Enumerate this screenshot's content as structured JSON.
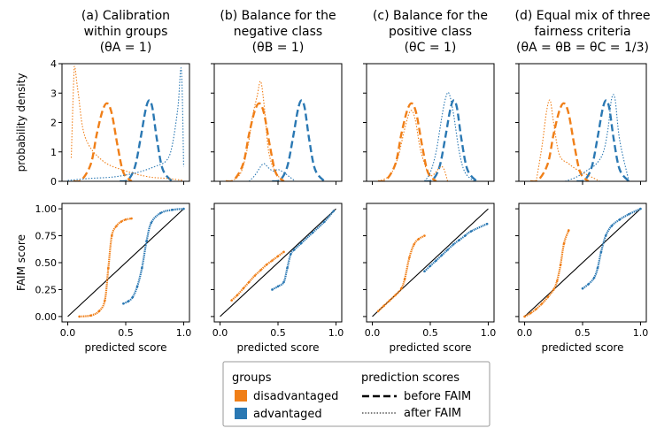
{
  "colors": {
    "disadvantaged": "#f07f18",
    "advantaged": "#2a78b3",
    "identity": "#000000"
  },
  "legend": {
    "groups_title": "groups",
    "groups": [
      {
        "label": "disadvantaged",
        "color": "#f07f18"
      },
      {
        "label": "advantaged",
        "color": "#2a78b3"
      }
    ],
    "scores_title": "prediction scores",
    "scores": [
      {
        "label": "before FAIM",
        "style": "dashed"
      },
      {
        "label": "after FAIM",
        "style": "dotted"
      }
    ]
  },
  "chart_data": {
    "type": "line",
    "grid": false,
    "legend_placement": "bottom-center",
    "panels": [
      {
        "title_lines": [
          "(a) Calibration",
          "within groups"
        ],
        "theta_label": "(θA = 1)",
        "density": {
          "before": {
            "disadvantaged": {
              "x": [
                0.05,
                0.12,
                0.2,
                0.25,
                0.3,
                0.34,
                0.38,
                0.43,
                0.48,
                0.55
              ],
              "y": [
                0.0,
                0.05,
                0.6,
                1.6,
                2.4,
                2.65,
                2.3,
                1.2,
                0.3,
                0.0
              ]
            },
            "advantaged": {
              "x": [
                0.45,
                0.52,
                0.58,
                0.63,
                0.67,
                0.7,
                0.73,
                0.77,
                0.82,
                0.9
              ],
              "y": [
                0.0,
                0.05,
                0.5,
                1.5,
                2.4,
                2.75,
                2.5,
                1.4,
                0.4,
                0.0
              ]
            }
          },
          "after": {
            "disadvantaged": {
              "x": [
                0.03,
                0.05,
                0.06,
                0.09,
                0.15,
                0.3,
                0.5,
                0.7,
                0.85,
                1.0
              ],
              "y": [
                0.8,
                3.3,
                3.9,
                3.0,
                1.5,
                0.7,
                0.35,
                0.15,
                0.1,
                0.03
              ]
            },
            "advantaged": {
              "x": [
                0.0,
                0.2,
                0.4,
                0.6,
                0.75,
                0.85,
                0.9,
                0.95,
                0.98,
                1.0
              ],
              "y": [
                0.03,
                0.1,
                0.15,
                0.3,
                0.5,
                0.7,
                1.2,
                2.5,
                3.8,
                0.5
              ]
            }
          }
        },
        "faim": {
          "disadvantaged": {
            "x": [
              0.1,
              0.2,
              0.27,
              0.32,
              0.35,
              0.38,
              0.42,
              0.46,
              0.5,
              0.55
            ],
            "y": [
              0.0,
              0.01,
              0.05,
              0.15,
              0.45,
              0.75,
              0.84,
              0.88,
              0.9,
              0.91
            ]
          },
          "advantaged": {
            "x": [
              0.48,
              0.52,
              0.56,
              0.6,
              0.64,
              0.68,
              0.72,
              0.8,
              0.9,
              1.0
            ],
            "y": [
              0.12,
              0.14,
              0.18,
              0.28,
              0.45,
              0.7,
              0.87,
              0.96,
              0.99,
              1.0
            ]
          }
        }
      },
      {
        "title_lines": [
          "(b) Balance for the",
          "negative class"
        ],
        "theta_label": "(θB = 1)",
        "density": {
          "before": {
            "disadvantaged": {
              "x": [
                0.05,
                0.12,
                0.2,
                0.25,
                0.3,
                0.34,
                0.38,
                0.43,
                0.48,
                0.55
              ],
              "y": [
                0.0,
                0.05,
                0.6,
                1.6,
                2.4,
                2.65,
                2.3,
                1.2,
                0.3,
                0.0
              ]
            },
            "advantaged": {
              "x": [
                0.45,
                0.52,
                0.58,
                0.63,
                0.67,
                0.7,
                0.73,
                0.77,
                0.82,
                0.9
              ],
              "y": [
                0.0,
                0.05,
                0.5,
                1.5,
                2.4,
                2.75,
                2.5,
                1.4,
                0.4,
                0.0
              ]
            }
          },
          "after": {
            "disadvantaged": {
              "x": [
                0.1,
                0.18,
                0.24,
                0.28,
                0.32,
                0.35,
                0.38,
                0.42,
                0.48,
                0.55
              ],
              "y": [
                0.0,
                0.3,
                1.2,
                2.2,
                2.9,
                3.4,
                2.6,
                1.0,
                0.3,
                0.0
              ]
            },
            "advantaged": {
              "x": [
                0.25,
                0.3,
                0.35,
                0.38,
                0.42,
                0.46,
                0.5,
                0.55,
                0.6,
                0.65
              ],
              "y": [
                0.0,
                0.2,
                0.5,
                0.6,
                0.45,
                0.35,
                0.4,
                0.3,
                0.15,
                0.0
              ]
            }
          }
        },
        "faim": {
          "disadvantaged": {
            "x": [
              0.1,
              0.15,
              0.2,
              0.25,
              0.3,
              0.35,
              0.4,
              0.45,
              0.5,
              0.55
            ],
            "y": [
              0.15,
              0.2,
              0.26,
              0.32,
              0.38,
              0.43,
              0.48,
              0.52,
              0.56,
              0.6
            ]
          },
          "advantaged": {
            "x": [
              0.45,
              0.5,
              0.55,
              0.58,
              0.61,
              0.64,
              0.7,
              0.8,
              0.9,
              0.98
            ],
            "y": [
              0.25,
              0.28,
              0.32,
              0.45,
              0.58,
              0.62,
              0.68,
              0.78,
              0.88,
              0.98
            ]
          }
        }
      },
      {
        "title_lines": [
          "(c) Balance for the",
          "positive class"
        ],
        "theta_label": "(θC = 1)",
        "density": {
          "before": {
            "disadvantaged": {
              "x": [
                0.05,
                0.12,
                0.2,
                0.25,
                0.3,
                0.34,
                0.38,
                0.43,
                0.48,
                0.55
              ],
              "y": [
                0.0,
                0.05,
                0.6,
                1.6,
                2.4,
                2.65,
                2.3,
                1.2,
                0.3,
                0.0
              ]
            },
            "advantaged": {
              "x": [
                0.45,
                0.52,
                0.58,
                0.63,
                0.67,
                0.7,
                0.73,
                0.77,
                0.82,
                0.9
              ],
              "y": [
                0.0,
                0.05,
                0.5,
                1.5,
                2.4,
                2.75,
                2.5,
                1.4,
                0.4,
                0.0
              ]
            }
          },
          "after": {
            "disadvantaged": {
              "x": [
                0.05,
                0.15,
                0.22,
                0.28,
                0.33,
                0.37,
                0.42,
                0.5,
                0.6,
                0.65
              ],
              "y": [
                0.0,
                0.2,
                0.8,
                1.8,
                2.4,
                2.1,
                1.0,
                0.2,
                0.5,
                0.0
              ]
            },
            "advantaged": {
              "x": [
                0.45,
                0.5,
                0.55,
                0.6,
                0.63,
                0.66,
                0.7,
                0.75,
                0.8,
                0.88
              ],
              "y": [
                0.0,
                0.3,
                1.0,
                2.2,
                2.8,
                3.0,
                2.3,
                1.0,
                0.3,
                0.0
              ]
            }
          }
        },
        "faim": {
          "disadvantaged": {
            "x": [
              0.05,
              0.1,
              0.15,
              0.2,
              0.25,
              0.28,
              0.32,
              0.36,
              0.4,
              0.45
            ],
            "y": [
              0.05,
              0.1,
              0.15,
              0.2,
              0.26,
              0.35,
              0.55,
              0.67,
              0.72,
              0.75
            ]
          },
          "advantaged": {
            "x": [
              0.45,
              0.5,
              0.55,
              0.6,
              0.65,
              0.7,
              0.75,
              0.8,
              0.85,
              0.99
            ],
            "y": [
              0.42,
              0.47,
              0.52,
              0.57,
              0.62,
              0.67,
              0.71,
              0.75,
              0.79,
              0.86
            ]
          }
        }
      },
      {
        "title_lines": [
          "(d) Equal mix of three",
          "fairness criteria"
        ],
        "theta_label": "(θA = θB = θC = 1/3)",
        "density": {
          "before": {
            "disadvantaged": {
              "x": [
                0.05,
                0.12,
                0.2,
                0.25,
                0.3,
                0.34,
                0.38,
                0.43,
                0.48,
                0.55
              ],
              "y": [
                0.0,
                0.05,
                0.6,
                1.6,
                2.4,
                2.65,
                2.3,
                1.2,
                0.3,
                0.0
              ]
            },
            "advantaged": {
              "x": [
                0.45,
                0.52,
                0.58,
                0.63,
                0.67,
                0.7,
                0.73,
                0.77,
                0.82,
                0.9
              ],
              "y": [
                0.0,
                0.05,
                0.5,
                1.5,
                2.4,
                2.75,
                2.5,
                1.4,
                0.4,
                0.0
              ]
            }
          },
          "after": {
            "disadvantaged": {
              "x": [
                0.1,
                0.15,
                0.19,
                0.22,
                0.25,
                0.3,
                0.38,
                0.45,
                0.55,
                0.65
              ],
              "y": [
                0.0,
                1.2,
                2.4,
                2.75,
                2.0,
                0.9,
                0.6,
                0.4,
                0.2,
                0.0
              ]
            },
            "advantaged": {
              "x": [
                0.35,
                0.45,
                0.55,
                0.62,
                0.68,
                0.72,
                0.75,
                0.78,
                0.82,
                0.9
              ],
              "y": [
                0.0,
                0.15,
                0.4,
                0.6,
                1.0,
                1.8,
                2.8,
                2.8,
                1.4,
                0.0
              ]
            }
          }
        },
        "faim": {
          "disadvantaged": {
            "x": [
              0.0,
              0.05,
              0.1,
              0.15,
              0.2,
              0.25,
              0.28,
              0.31,
              0.34,
              0.38
            ],
            "y": [
              0.0,
              0.03,
              0.07,
              0.12,
              0.18,
              0.25,
              0.33,
              0.48,
              0.68,
              0.8
            ]
          },
          "advantaged": {
            "x": [
              0.5,
              0.55,
              0.6,
              0.63,
              0.66,
              0.7,
              0.75,
              0.82,
              0.9,
              1.0
            ],
            "y": [
              0.26,
              0.3,
              0.36,
              0.45,
              0.6,
              0.75,
              0.84,
              0.9,
              0.95,
              1.0
            ]
          }
        }
      }
    ],
    "top_axes": {
      "ylabel": "probability density",
      "ylim": [
        0,
        4
      ],
      "yticks": [
        "0",
        "1",
        "2",
        "3",
        "4"
      ],
      "xlim": [
        -0.05,
        1.05
      ]
    },
    "bottom_axes": {
      "ylabel": "FAIM score",
      "xlabel": "predicted score",
      "xlim": [
        -0.05,
        1.05
      ],
      "ylim": [
        -0.05,
        1.05
      ],
      "xticks": [
        "0.0",
        "0.5",
        "1.0"
      ],
      "yticks": [
        "0.00",
        "0.25",
        "0.50",
        "0.75",
        "1.00"
      ]
    }
  }
}
